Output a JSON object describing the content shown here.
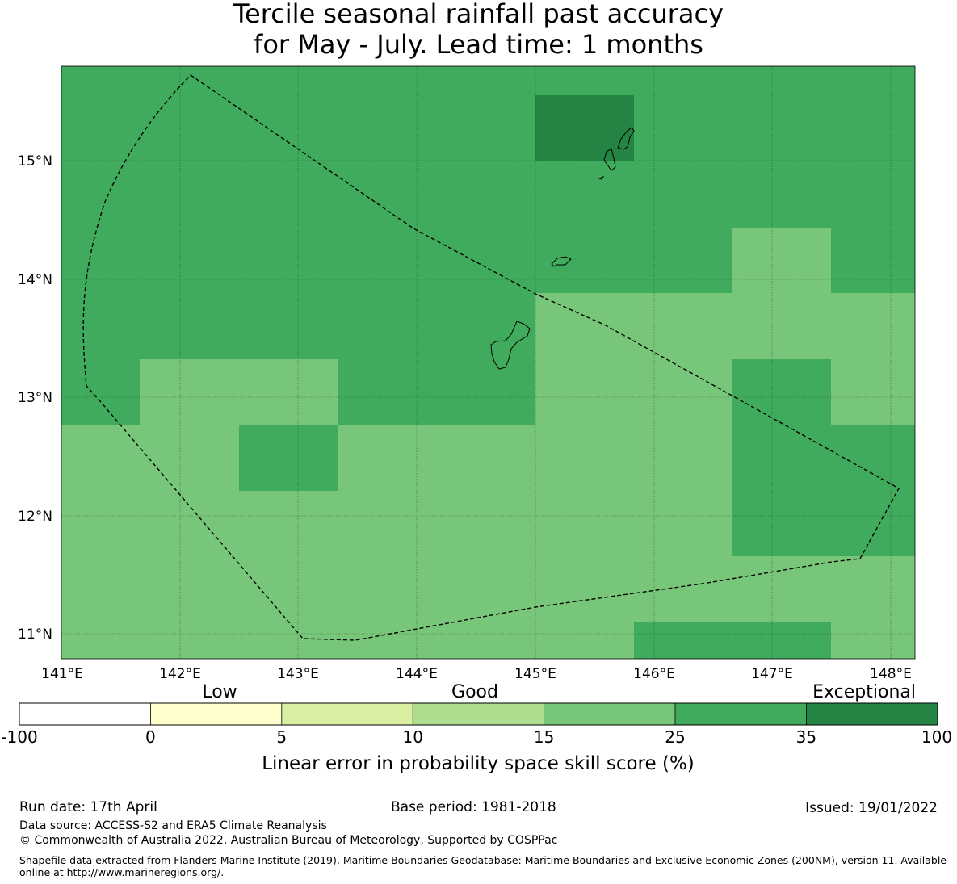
{
  "title": {
    "line1": "Tercile seasonal rainfall past accuracy",
    "line2": "for May - July. Lead time: 1 months"
  },
  "map": {
    "lon_labels": [
      "141°E",
      "142°E",
      "143°E",
      "144°E",
      "145°E",
      "146°E",
      "147°E",
      "148°E"
    ],
    "lat_labels": [
      "15°N",
      "14°N",
      "13°N",
      "12°N",
      "11°N"
    ],
    "lon_range": [
      141,
      148.2
    ],
    "lat_range": [
      10.8,
      15.8
    ],
    "grid": true,
    "boundary_line": "dashed",
    "cell_size_deg": 0.833,
    "class_colors": {
      "15-25": "#78c679",
      "25-35": "#41ab5d",
      "35-100": "#238443"
    }
  },
  "colorbar": {
    "categories": [
      "Low",
      "Good",
      "Exceptional"
    ],
    "ticks": [
      "-100",
      "0",
      "5",
      "10",
      "15",
      "25",
      "35",
      "100"
    ],
    "colors": [
      "#ffffff",
      "#ffffcc",
      "#d9f0a3",
      "#addd8e",
      "#78c679",
      "#41ab5d",
      "#238443"
    ],
    "label": "Linear error in probability space skill score (%)"
  },
  "footer": {
    "run_date": "Run date: 17th April",
    "base_period": "Base period: 1981-2018",
    "issued": "Issued: 19/01/2022",
    "data_source": "Data source: ACCESS-S2 and ERA5 Climate Reanalysis",
    "copyright": "© Commonwealth of Australia 2022, Australian Bureau of Meteorology, Supported by COSPPac",
    "shapefile": "Shapefile data extracted from Flanders Marine Institute (2019), Maritime Boundaries Geodatabase: Maritime Boundaries and Exclusive Economic Zones (200NM), version 11. Available online at http://www.marineregions.org/."
  }
}
